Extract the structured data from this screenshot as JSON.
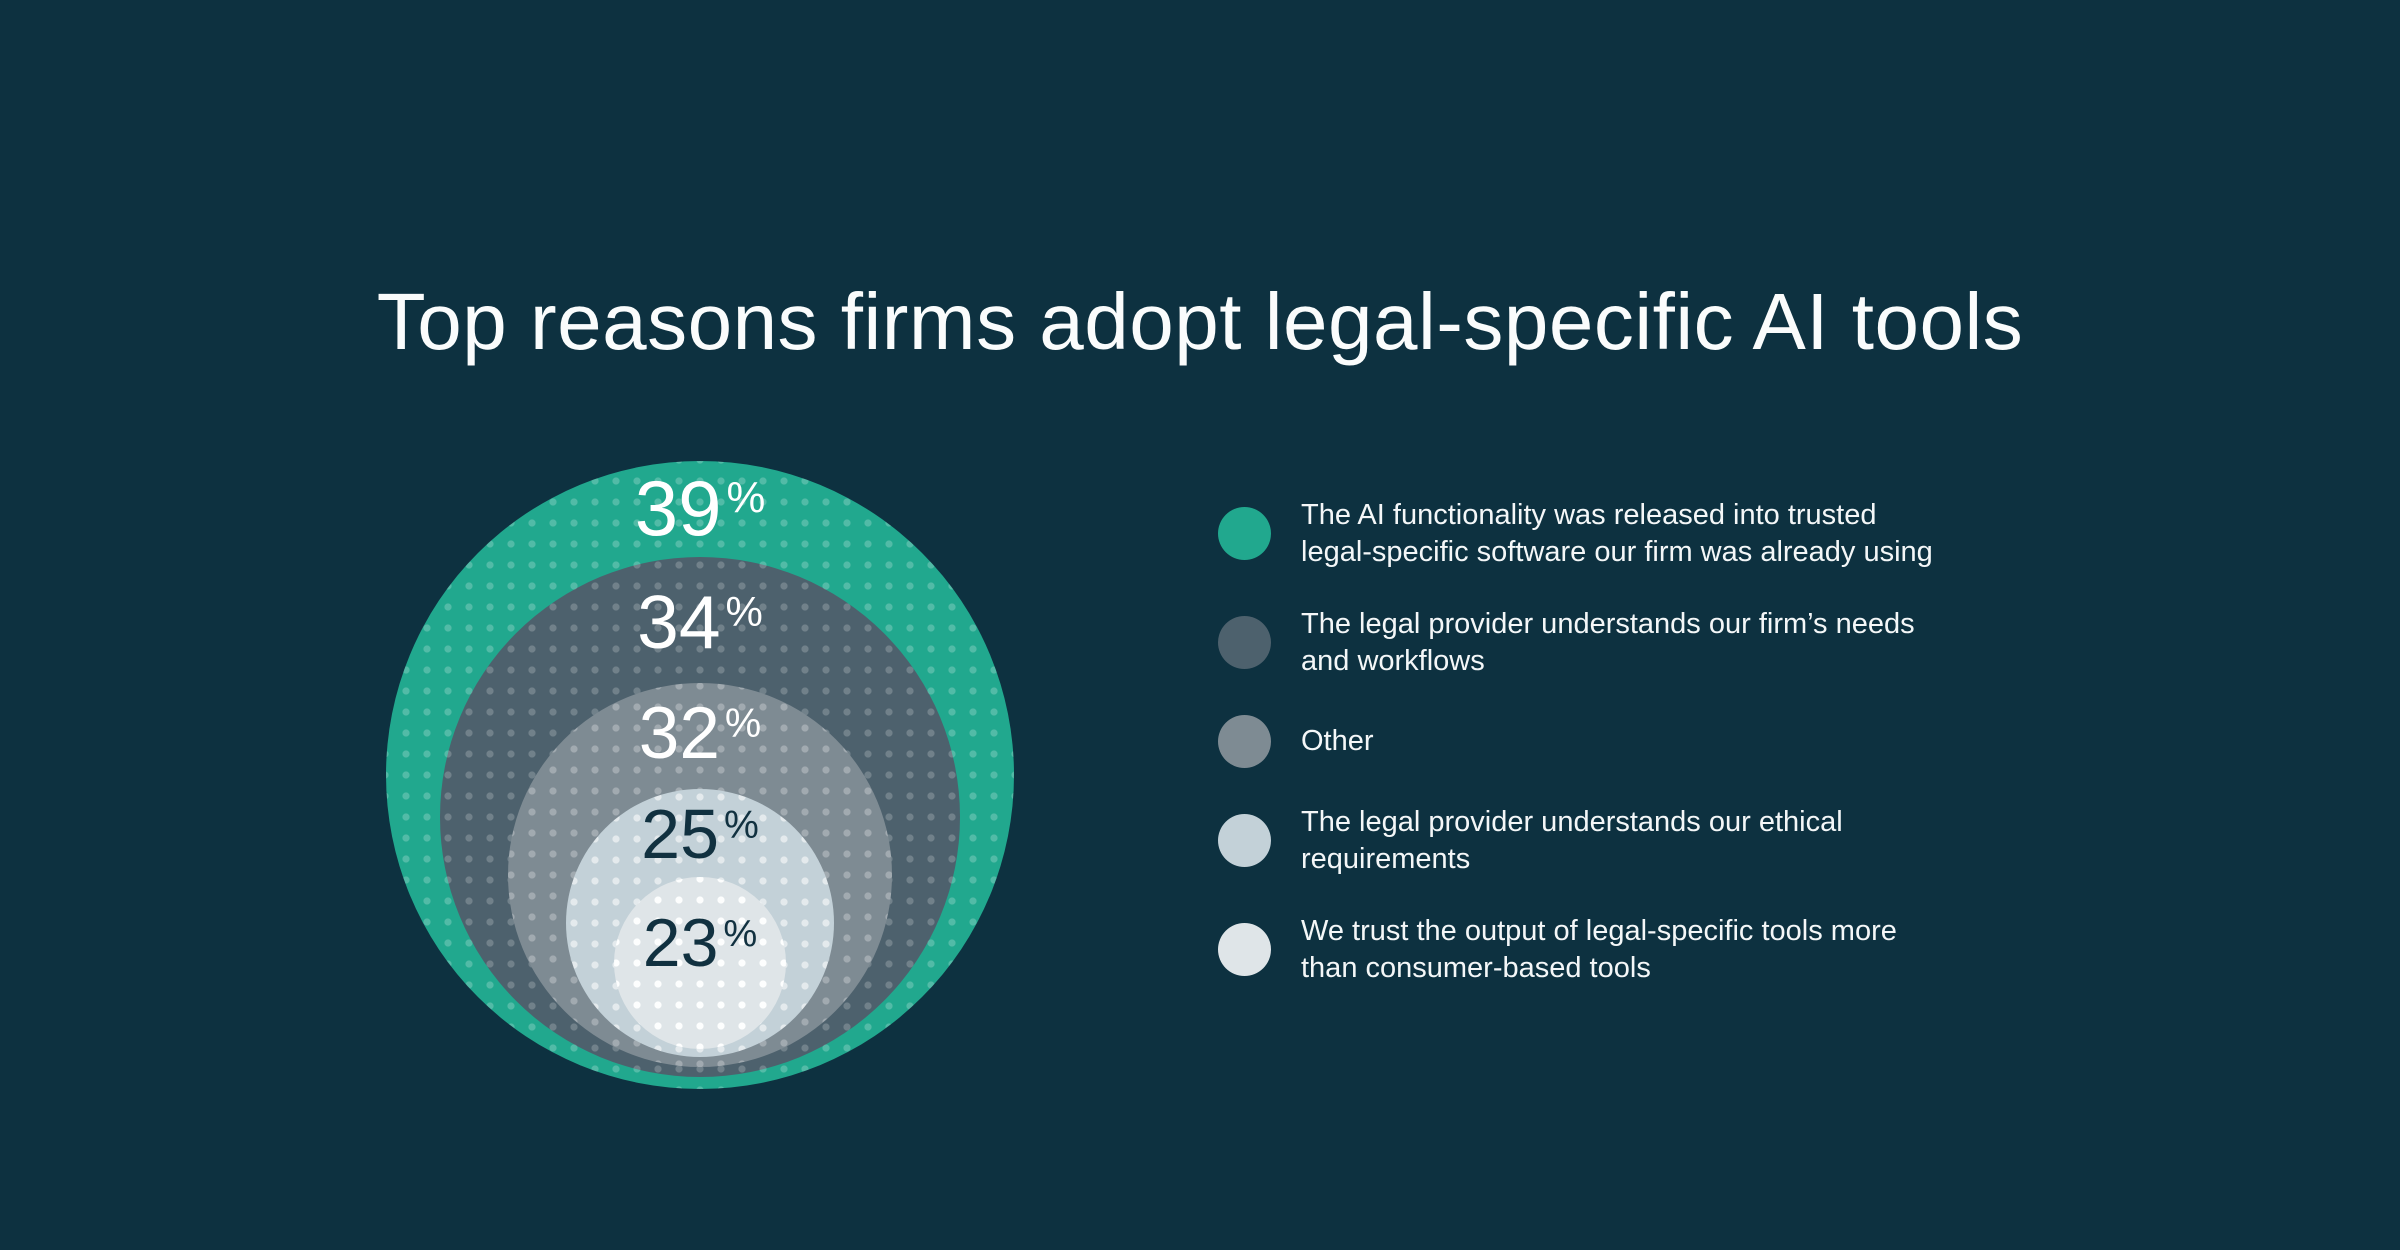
{
  "title": "Top reasons firms adopt legal-specific AI tools",
  "colors": {
    "background": "#0D3140",
    "title_text": "#FAFCFC",
    "legend_text": "#F4F7F8",
    "value_label_light": "#FFFFFF",
    "value_label_dark": "#113140"
  },
  "chart_data": {
    "type": "nested-circles",
    "title": "Top reasons firms adopt legal-specific AI tools",
    "unit": "%",
    "layout": "concentric bottom-aligned circles, largest value outermost, dotted texture overlay, value labels inside top of each circle, legend at right",
    "series": [
      {
        "label": "The AI functionality was released into trusted legal-specific software our firm was already using",
        "value": 39,
        "color": "#21A88E"
      },
      {
        "label": "The legal provider understands our firm’s needs and workflows",
        "value": 34,
        "color": "#4D616D"
      },
      {
        "label": "Other",
        "value": 32,
        "color": "#7E8B93"
      },
      {
        "label": "The legal provider understands our ethical requirements",
        "value": 25,
        "color": "#C3D1D8"
      },
      {
        "label": "We trust the output of legal-specific tools more than consumer-based tools",
        "value": 23,
        "color": "#DFE5E8"
      }
    ]
  },
  "legend": {
    "items": [
      {
        "line1": "The AI functionality was released into trusted",
        "line2": "legal-specific software our firm was already using"
      },
      {
        "line1": "The legal provider understands our firm’s needs",
        "line2": "and workflows"
      },
      {
        "line1": "Other"
      },
      {
        "line1": "The legal provider understands our ethical",
        "line2": "requirements"
      },
      {
        "line1": "We trust the output of legal-specific tools more",
        "line2": "than consumer-based tools"
      }
    ]
  }
}
